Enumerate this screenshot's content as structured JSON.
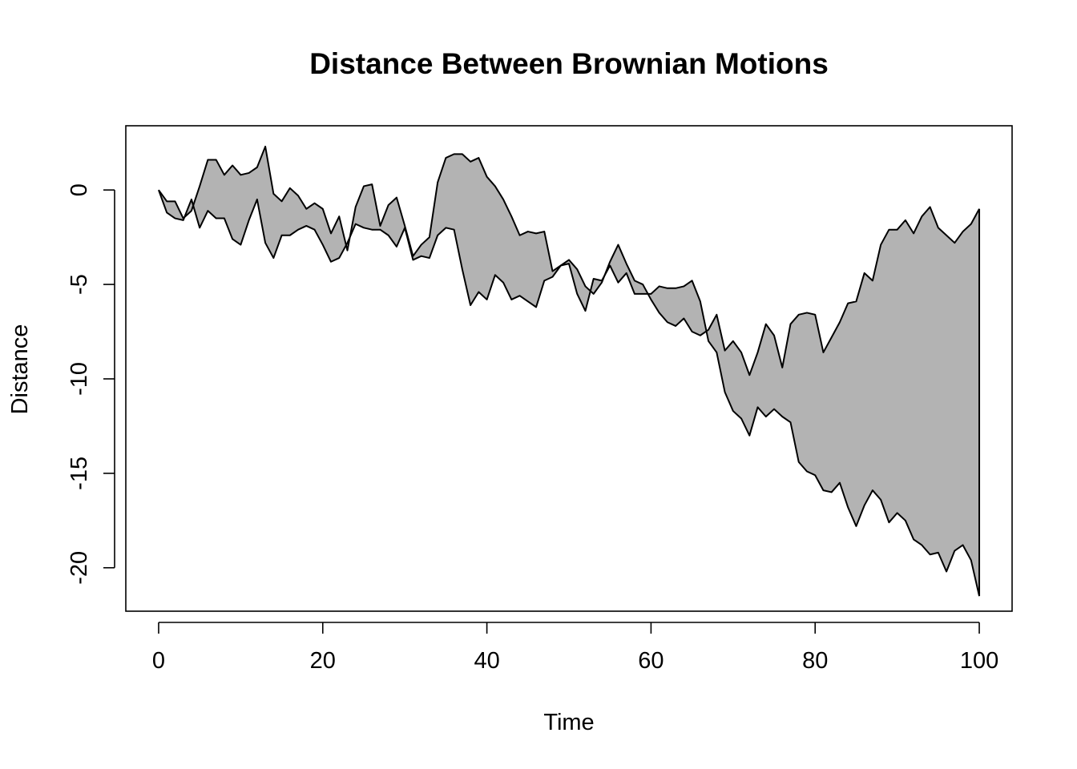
{
  "chart_data": {
    "type": "area",
    "title": "Distance Between Brownian Motions",
    "xlabel": "Time",
    "ylabel": "Distance",
    "xlim": [
      -4,
      104
    ],
    "ylim": [
      -22.3,
      3.4
    ],
    "x_ticks": [
      0,
      20,
      40,
      60,
      80,
      100
    ],
    "y_ticks": [
      0,
      -5,
      -10,
      -15,
      -20
    ],
    "grid": false,
    "legend": "none",
    "fill_color": "#b3b3b3",
    "line_color": "#000000",
    "x": [
      0,
      1,
      2,
      3,
      4,
      5,
      6,
      7,
      8,
      9,
      10,
      11,
      12,
      13,
      14,
      15,
      16,
      17,
      18,
      19,
      20,
      21,
      22,
      23,
      24,
      25,
      26,
      27,
      28,
      29,
      30,
      31,
      32,
      33,
      34,
      35,
      36,
      37,
      38,
      39,
      40,
      41,
      42,
      43,
      44,
      45,
      46,
      47,
      48,
      49,
      50,
      51,
      52,
      53,
      54,
      55,
      56,
      57,
      58,
      59,
      60,
      61,
      62,
      63,
      64,
      65,
      66,
      67,
      68,
      69,
      70,
      71,
      72,
      73,
      74,
      75,
      76,
      77,
      78,
      79,
      80,
      81,
      82,
      83,
      84,
      85,
      86,
      87,
      88,
      89,
      90,
      91,
      92,
      93,
      94,
      95,
      96,
      97,
      98,
      99,
      100
    ],
    "series": [
      {
        "values": [
          0,
          -0.6,
          -0.6,
          -1.5,
          -1.1,
          0.2,
          1.6,
          1.6,
          0.8,
          1.3,
          0.8,
          0.9,
          1.2,
          2.3,
          -0.2,
          -0.6,
          0.1,
          -0.3,
          -1.0,
          -0.7,
          -1.0,
          -2.3,
          -1.4,
          -3.2,
          -0.9,
          0.2,
          0.3,
          -1.9,
          -0.8,
          -0.4,
          -1.9,
          -3.5,
          -2.9,
          -2.5,
          0.4,
          1.7,
          1.9,
          1.9,
          1.5,
          1.7,
          0.7,
          0.2,
          -0.5,
          -1.4,
          -2.4,
          -2.2,
          -2.3,
          -2.2,
          -4.3,
          -4.0,
          -3.7,
          -4.2,
          -5.1,
          -5.5,
          -4.9,
          -3.8,
          -2.9,
          -3.9,
          -4.8,
          -5.0,
          -5.8,
          -6.5,
          -7.0,
          -7.2,
          -6.8,
          -7.5,
          -7.7,
          -7.4,
          -6.6,
          -8.5,
          -8.0,
          -8.6,
          -9.8,
          -8.6,
          -7.1,
          -7.7,
          -9.4,
          -7.1,
          -6.6,
          -6.5,
          -6.6,
          -8.6,
          -7.8,
          -7.0,
          -6.0,
          -5.9,
          -4.4,
          -4.8,
          -2.9,
          -2.1,
          -2.1,
          -1.6,
          -2.3,
          -1.4,
          -0.9,
          -2.0,
          -2.4,
          -2.8,
          -2.2,
          -1.8,
          -1.0
        ]
      },
      {
        "values": [
          0,
          -1.2,
          -1.5,
          -1.6,
          -0.5,
          -2.0,
          -1.1,
          -1.5,
          -1.5,
          -2.6,
          -2.9,
          -1.6,
          -0.5,
          -2.8,
          -3.6,
          -2.4,
          -2.4,
          -2.1,
          -1.9,
          -2.1,
          -2.9,
          -3.8,
          -3.6,
          -2.8,
          -1.8,
          -2.0,
          -2.1,
          -2.1,
          -2.4,
          -3.0,
          -2.0,
          -3.7,
          -3.5,
          -3.6,
          -2.4,
          -2.0,
          -2.1,
          -4.2,
          -6.1,
          -5.4,
          -5.8,
          -4.5,
          -4.9,
          -5.8,
          -5.6,
          -5.9,
          -6.2,
          -4.8,
          -4.6,
          -4.0,
          -3.9,
          -5.5,
          -6.4,
          -4.7,
          -4.8,
          -4.0,
          -4.9,
          -4.4,
          -5.5,
          -5.5,
          -5.5,
          -5.1,
          -5.2,
          -5.2,
          -5.1,
          -4.8,
          -5.9,
          -8.0,
          -8.6,
          -10.7,
          -11.7,
          -12.1,
          -13.0,
          -11.5,
          -12.0,
          -11.6,
          -12.0,
          -12.3,
          -14.4,
          -14.9,
          -15.1,
          -15.9,
          -16.0,
          -15.5,
          -16.8,
          -17.8,
          -16.7,
          -15.9,
          -16.4,
          -17.6,
          -17.1,
          -17.5,
          -18.5,
          -18.8,
          -19.3,
          -19.2,
          -20.2,
          -19.1,
          -18.8,
          -19.6,
          -21.5
        ]
      }
    ]
  }
}
